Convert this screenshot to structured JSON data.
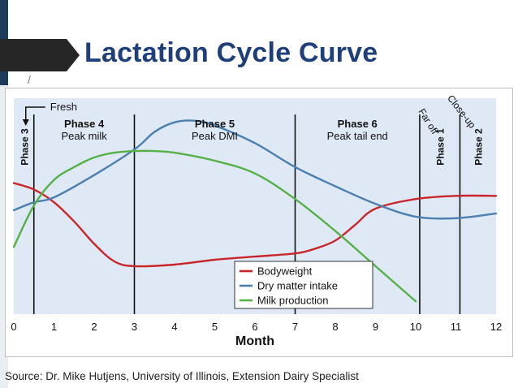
{
  "slide": {
    "title": "Lactation Cycle Curve",
    "source": "Source: Dr. Mike Hutjens, University of Illinois, Extension Dairy Specialist"
  },
  "colors": {
    "title": "#1f3f7a",
    "plot_bg": "#dfe9f5",
    "bodyweight": "#c8262b",
    "dry_matter_intake": "#4a7fb0",
    "milk_production": "#55b047"
  },
  "chart_data": {
    "type": "line",
    "xlabel": "Month",
    "ylabel": "",
    "xlim": [
      0,
      12
    ],
    "x_ticks": [
      "0",
      "1",
      "2",
      "3",
      "4",
      "5",
      "6",
      "7",
      "8",
      "9",
      "10",
      "11",
      "12"
    ],
    "phase_boundaries": [
      0.5,
      3,
      7,
      10.1,
      11.1
    ],
    "phases": [
      {
        "name": "Phase 3",
        "desc": ""
      },
      {
        "name": "Phase 4",
        "desc": "Peak milk"
      },
      {
        "name": "Phase 5",
        "desc": "Peak DMI"
      },
      {
        "name": "Phase 6",
        "desc": "Peak tail end"
      },
      {
        "name": "Phase 1",
        "desc": "Far off"
      },
      {
        "name": "Phase 2",
        "desc": "Close-up"
      }
    ],
    "annotations": [
      "Fresh"
    ],
    "legend_position": "bottom-center",
    "series": [
      {
        "name": "Bodyweight",
        "x": [
          0,
          0.5,
          1,
          1.5,
          2,
          2.5,
          3,
          4,
          5,
          6,
          7,
          7.5,
          8,
          8.5,
          9,
          10,
          11,
          12
        ],
        "y": [
          82,
          78,
          70,
          58,
          44,
          33,
          30,
          31,
          34,
          36,
          38,
          41,
          46,
          56,
          66,
          72,
          74,
          74
        ]
      },
      {
        "name": "Dry matter intake",
        "x": [
          0,
          0.5,
          1,
          2,
          3,
          3.5,
          4,
          4.5,
          5,
          6,
          7,
          8,
          9,
          10,
          11,
          12
        ],
        "y": [
          65,
          70,
          73,
          87,
          103,
          114,
          120,
          121,
          118,
          107,
          92,
          80,
          69,
          61,
          60,
          63
        ]
      },
      {
        "name": "Milk production",
        "x": [
          0,
          0.5,
          1,
          1.5,
          2,
          2.5,
          3,
          3.5,
          4,
          5,
          6,
          7,
          8,
          9,
          10
        ],
        "y": [
          42,
          68,
          84,
          92,
          98,
          101,
          102,
          102,
          101,
          96,
          88,
          72,
          52,
          30,
          8
        ]
      }
    ]
  }
}
